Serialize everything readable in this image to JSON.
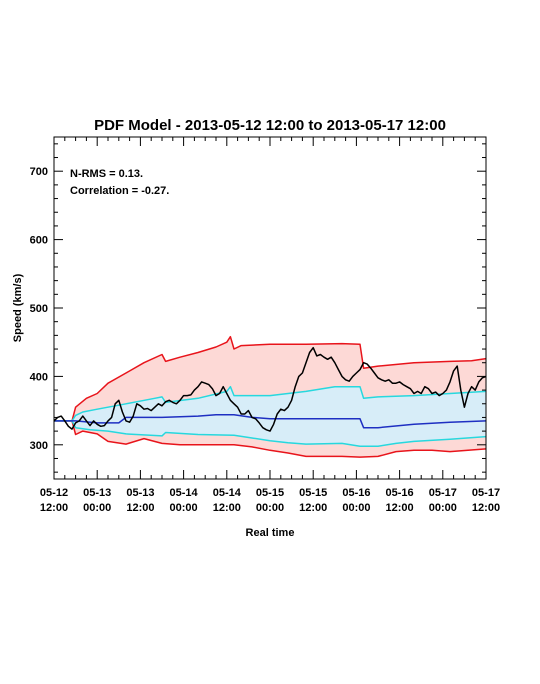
{
  "chart_data": {
    "type": "line",
    "title": "PDF Model - 2013-05-12 12:00 to 2013-05-17 12:00",
    "xlabel": "Real time",
    "ylabel": "Speed (km/s)",
    "xlim": [
      0,
      120
    ],
    "ylim": [
      250,
      750
    ],
    "yticks": [
      300,
      400,
      500,
      600,
      700
    ],
    "xticks": [
      {
        "h": 0,
        "date": "05-12",
        "time": "12:00"
      },
      {
        "h": 12,
        "date": "05-13",
        "time": "00:00"
      },
      {
        "h": 24,
        "date": "05-13",
        "time": "12:00"
      },
      {
        "h": 36,
        "date": "05-14",
        "time": "00:00"
      },
      {
        "h": 48,
        "date": "05-14",
        "time": "12:00"
      },
      {
        "h": 60,
        "date": "05-15",
        "time": "00:00"
      },
      {
        "h": 72,
        "date": "05-15",
        "time": "12:00"
      },
      {
        "h": 84,
        "date": "05-16",
        "time": "00:00"
      },
      {
        "h": 96,
        "date": "05-16",
        "time": "12:00"
      },
      {
        "h": 108,
        "date": "05-17",
        "time": "00:00"
      },
      {
        "h": 120,
        "date": "05-17",
        "time": "12:00"
      }
    ],
    "annotations": [
      "N-RMS = 0.13.",
      "Correlation = -0.27."
    ],
    "colors": {
      "outer_band_fill": "#fdd9d6",
      "inner_band_fill": "#d7edf8",
      "outer_line": "#e8141b",
      "inner_line": "#27d8de",
      "median_line": "#1e2fc2",
      "observed_line": "#000000"
    },
    "series": {
      "outer_upper": [
        [
          0,
          335
        ],
        [
          5,
          335
        ],
        [
          6,
          355
        ],
        [
          9,
          368
        ],
        [
          12,
          375
        ],
        [
          15,
          390
        ],
        [
          20,
          405
        ],
        [
          25,
          420
        ],
        [
          30,
          432
        ],
        [
          31,
          422
        ],
        [
          35,
          428
        ],
        [
          40,
          435
        ],
        [
          45,
          443
        ],
        [
          48,
          450
        ],
        [
          49,
          458
        ],
        [
          50,
          440
        ],
        [
          52,
          445
        ],
        [
          60,
          447
        ],
        [
          70,
          447
        ],
        [
          80,
          448
        ],
        [
          85,
          447
        ],
        [
          86,
          412
        ],
        [
          90,
          415
        ],
        [
          100,
          420
        ],
        [
          110,
          422
        ],
        [
          116,
          423
        ],
        [
          120,
          426
        ]
      ],
      "inner_upper": [
        [
          0,
          335
        ],
        [
          5,
          335
        ],
        [
          6,
          343
        ],
        [
          8,
          348
        ],
        [
          12,
          352
        ],
        [
          20,
          360
        ],
        [
          28,
          368
        ],
        [
          30,
          370
        ],
        [
          31,
          362
        ],
        [
          40,
          368
        ],
        [
          48,
          378
        ],
        [
          49,
          385
        ],
        [
          50,
          372
        ],
        [
          60,
          372
        ],
        [
          70,
          378
        ],
        [
          78,
          385
        ],
        [
          85,
          385
        ],
        [
          86,
          368
        ],
        [
          90,
          370
        ],
        [
          100,
          372
        ],
        [
          110,
          375
        ],
        [
          120,
          378
        ]
      ],
      "median": [
        [
          0,
          335
        ],
        [
          6,
          335
        ],
        [
          12,
          332
        ],
        [
          18,
          332
        ],
        [
          20,
          340
        ],
        [
          30,
          340
        ],
        [
          40,
          342
        ],
        [
          45,
          344
        ],
        [
          50,
          344
        ],
        [
          55,
          340
        ],
        [
          60,
          338
        ],
        [
          70,
          338
        ],
        [
          80,
          338
        ],
        [
          85,
          338
        ],
        [
          86,
          325
        ],
        [
          90,
          325
        ],
        [
          100,
          330
        ],
        [
          110,
          333
        ],
        [
          120,
          335
        ]
      ],
      "inner_lower": [
        [
          0,
          335
        ],
        [
          5,
          335
        ],
        [
          6,
          325
        ],
        [
          10,
          322
        ],
        [
          15,
          320
        ],
        [
          20,
          316
        ],
        [
          30,
          313
        ],
        [
          31,
          318
        ],
        [
          40,
          315
        ],
        [
          50,
          314
        ],
        [
          55,
          310
        ],
        [
          60,
          306
        ],
        [
          65,
          303
        ],
        [
          70,
          301
        ],
        [
          80,
          302
        ],
        [
          85,
          298
        ],
        [
          90,
          298
        ],
        [
          95,
          302
        ],
        [
          100,
          305
        ],
        [
          110,
          308
        ],
        [
          120,
          312
        ]
      ],
      "outer_lower": [
        [
          0,
          335
        ],
        [
          5,
          335
        ],
        [
          6,
          315
        ],
        [
          8,
          320
        ],
        [
          12,
          316
        ],
        [
          15,
          305
        ],
        [
          20,
          301
        ],
        [
          25,
          309
        ],
        [
          30,
          302
        ],
        [
          35,
          300
        ],
        [
          40,
          300
        ],
        [
          45,
          300
        ],
        [
          50,
          300
        ],
        [
          55,
          297
        ],
        [
          60,
          292
        ],
        [
          65,
          288
        ],
        [
          70,
          283
        ],
        [
          75,
          283
        ],
        [
          80,
          283
        ],
        [
          85,
          282
        ],
        [
          90,
          283
        ],
        [
          95,
          290
        ],
        [
          100,
          292
        ],
        [
          105,
          292
        ],
        [
          110,
          290
        ],
        [
          115,
          292
        ],
        [
          120,
          294
        ]
      ],
      "observed": [
        [
          0,
          335
        ],
        [
          1,
          340
        ],
        [
          2,
          342
        ],
        [
          3,
          335
        ],
        [
          4,
          327
        ],
        [
          5,
          323
        ],
        [
          6,
          332
        ],
        [
          7,
          335
        ],
        [
          8,
          342
        ],
        [
          9,
          335
        ],
        [
          10,
          328
        ],
        [
          11,
          335
        ],
        [
          12,
          330
        ],
        [
          13,
          327
        ],
        [
          14,
          328
        ],
        [
          15,
          335
        ],
        [
          16,
          340
        ],
        [
          17,
          360
        ],
        [
          18,
          365
        ],
        [
          19,
          348
        ],
        [
          20,
          335
        ],
        [
          21,
          333
        ],
        [
          22,
          342
        ],
        [
          23,
          360
        ],
        [
          24,
          357
        ],
        [
          25,
          352
        ],
        [
          26,
          353
        ],
        [
          27,
          350
        ],
        [
          28,
          355
        ],
        [
          29,
          360
        ],
        [
          30,
          357
        ],
        [
          31,
          363
        ],
        [
          32,
          365
        ],
        [
          33,
          362
        ],
        [
          34,
          360
        ],
        [
          35,
          365
        ],
        [
          36,
          372
        ],
        [
          37,
          372
        ],
        [
          38,
          373
        ],
        [
          39,
          380
        ],
        [
          40,
          385
        ],
        [
          41,
          392
        ],
        [
          42,
          390
        ],
        [
          43,
          388
        ],
        [
          44,
          382
        ],
        [
          45,
          372
        ],
        [
          46,
          375
        ],
        [
          47,
          385
        ],
        [
          48,
          375
        ],
        [
          49,
          365
        ],
        [
          50,
          360
        ],
        [
          51,
          355
        ],
        [
          52,
          345
        ],
        [
          53,
          345
        ],
        [
          54,
          350
        ],
        [
          55,
          340
        ],
        [
          56,
          338
        ],
        [
          57,
          332
        ],
        [
          58,
          325
        ],
        [
          59,
          322
        ],
        [
          60,
          320
        ],
        [
          61,
          330
        ],
        [
          62,
          345
        ],
        [
          63,
          352
        ],
        [
          64,
          350
        ],
        [
          65,
          355
        ],
        [
          66,
          365
        ],
        [
          67,
          385
        ],
        [
          68,
          400
        ],
        [
          69,
          405
        ],
        [
          70,
          420
        ],
        [
          71,
          435
        ],
        [
          72,
          442
        ],
        [
          73,
          430
        ],
        [
          74,
          432
        ],
        [
          75,
          428
        ],
        [
          76,
          425
        ],
        [
          77,
          428
        ],
        [
          78,
          420
        ],
        [
          79,
          410
        ],
        [
          80,
          400
        ],
        [
          81,
          395
        ],
        [
          82,
          393
        ],
        [
          83,
          400
        ],
        [
          84,
          405
        ],
        [
          85,
          410
        ],
        [
          86,
          420
        ],
        [
          87,
          418
        ],
        [
          88,
          412
        ],
        [
          89,
          405
        ],
        [
          90,
          398
        ],
        [
          91,
          395
        ],
        [
          92,
          393
        ],
        [
          93,
          395
        ],
        [
          94,
          390
        ],
        [
          95,
          390
        ],
        [
          96,
          392
        ],
        [
          97,
          388
        ],
        [
          98,
          385
        ],
        [
          99,
          382
        ],
        [
          100,
          375
        ],
        [
          101,
          378
        ],
        [
          102,
          375
        ],
        [
          103,
          385
        ],
        [
          104,
          382
        ],
        [
          105,
          375
        ],
        [
          106,
          377
        ],
        [
          107,
          372
        ],
        [
          108,
          375
        ],
        [
          109,
          380
        ],
        [
          110,
          392
        ],
        [
          111,
          408
        ],
        [
          112,
          415
        ],
        [
          113,
          380
        ],
        [
          114,
          355
        ],
        [
          115,
          375
        ],
        [
          116,
          385
        ],
        [
          117,
          380
        ],
        [
          118,
          392
        ],
        [
          119,
          398
        ],
        [
          120,
          400
        ]
      ]
    }
  }
}
